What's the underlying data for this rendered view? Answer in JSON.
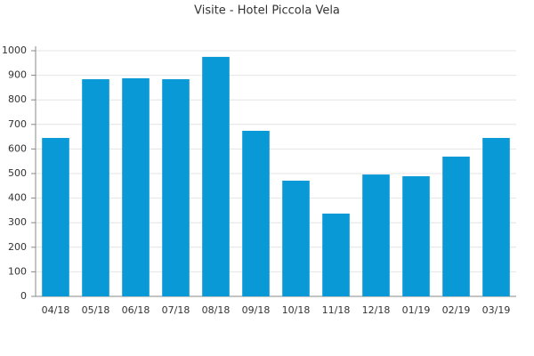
{
  "chart_data": {
    "type": "bar",
    "title": "Visite - Hotel Piccola Vela",
    "categories": [
      "04/18",
      "05/18",
      "06/18",
      "07/18",
      "08/18",
      "09/18",
      "10/18",
      "11/18",
      "12/18",
      "01/19",
      "02/19",
      "03/19"
    ],
    "values": [
      645,
      884,
      888,
      884,
      975,
      674,
      471,
      337,
      496,
      489,
      569,
      645
    ],
    "color": "#0899d6",
    "ylim": [
      0,
      1000
    ],
    "yticks": [
      0,
      100,
      200,
      300,
      400,
      500,
      600,
      700,
      800,
      900,
      1000
    ],
    "grid": true
  }
}
